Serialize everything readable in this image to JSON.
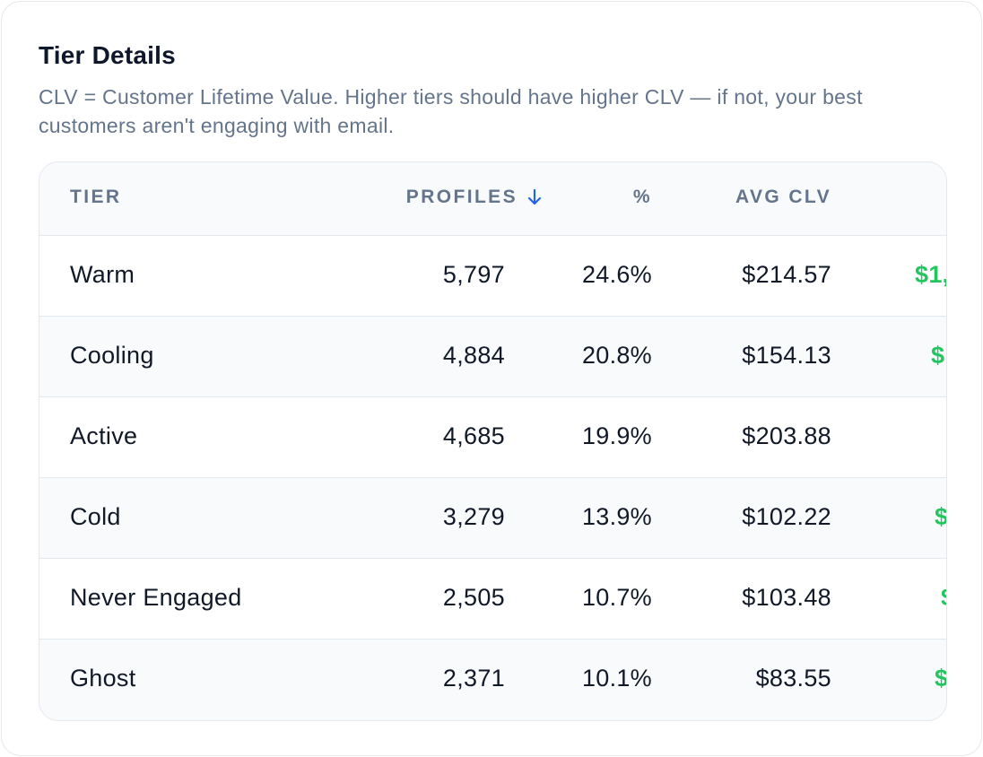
{
  "card": {
    "title": "Tier Details",
    "description": "CLV = Customer Lifetime Value. Higher tiers should have higher CLV — if not, your best customers aren't engaging with email."
  },
  "table": {
    "headers": {
      "tier": "TIER",
      "profiles": "PROFILES",
      "percent": "%",
      "avg_clv": "AVG CLV"
    },
    "sort": {
      "column": "profiles",
      "direction": "desc",
      "icon": "arrow-down-icon"
    },
    "rows": [
      {
        "tier": "Warm",
        "profiles": "5,797",
        "percent": "24.6%",
        "avg_clv": "$214.57",
        "extra": "$1,"
      },
      {
        "tier": "Cooling",
        "profiles": "4,884",
        "percent": "20.8%",
        "avg_clv": "$154.13",
        "extra": "$"
      },
      {
        "tier": "Active",
        "profiles": "4,685",
        "percent": "19.9%",
        "avg_clv": "$203.88",
        "extra": ""
      },
      {
        "tier": "Cold",
        "profiles": "3,279",
        "percent": "13.9%",
        "avg_clv": "$102.22",
        "extra": "$"
      },
      {
        "tier": "Never Engaged",
        "profiles": "2,505",
        "percent": "10.7%",
        "avg_clv": "$103.48",
        "extra": "$"
      },
      {
        "tier": "Ghost",
        "profiles": "2,371",
        "percent": "10.1%",
        "avg_clv": "$83.55",
        "extra": "$"
      }
    ]
  },
  "colors": {
    "accent_green": "#22c55e",
    "sort_icon_blue": "#2563eb",
    "muted_text": "#64748b",
    "border": "#e2e8f0"
  }
}
